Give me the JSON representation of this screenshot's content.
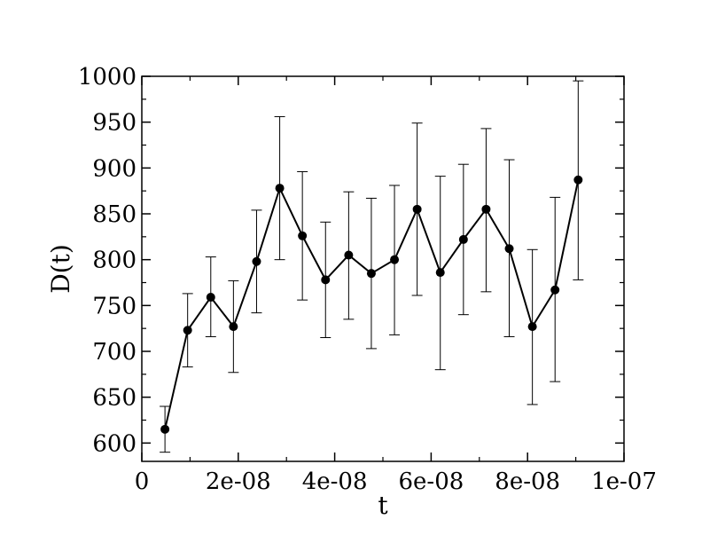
{
  "chart_data": {
    "type": "line",
    "xlabel": "t",
    "ylabel": "D(t)",
    "xlim": [
      0,
      1e-07
    ],
    "ylim": [
      580,
      1000
    ],
    "grid": false,
    "x_ticks": [
      {
        "value": 0,
        "label": "0"
      },
      {
        "value": 2e-08,
        "label": "2e-08"
      },
      {
        "value": 4e-08,
        "label": "4e-08"
      },
      {
        "value": 6e-08,
        "label": "6e-08"
      },
      {
        "value": 8e-08,
        "label": "8e-08"
      },
      {
        "value": 1e-07,
        "label": "1e-07"
      }
    ],
    "y_ticks": [
      {
        "value": 600,
        "label": "600"
      },
      {
        "value": 650,
        "label": "650"
      },
      {
        "value": 700,
        "label": "700"
      },
      {
        "value": 750,
        "label": "750"
      },
      {
        "value": 800,
        "label": "800"
      },
      {
        "value": 850,
        "label": "850"
      },
      {
        "value": 900,
        "label": "900"
      },
      {
        "value": 950,
        "label": "950"
      },
      {
        "value": 1000,
        "label": "1000"
      }
    ],
    "series": [
      {
        "x": [
          4.8e-09,
          9.5e-09,
          1.43e-08,
          1.9e-08,
          2.38e-08,
          2.86e-08,
          3.33e-08,
          3.81e-08,
          4.29e-08,
          4.76e-08,
          5.24e-08,
          5.71e-08,
          6.19e-08,
          6.67e-08,
          7.14e-08,
          7.62e-08,
          8.1e-08,
          8.57e-08,
          9.05e-08
        ],
        "y": [
          615,
          723,
          759,
          727,
          798,
          878,
          826,
          778,
          805,
          785,
          800,
          855,
          786,
          822,
          855,
          812,
          727,
          767,
          887
        ],
        "y_err_low": [
          590,
          683,
          716,
          677,
          742,
          800,
          756,
          715,
          735,
          703,
          718,
          761,
          680,
          740,
          765,
          716,
          642,
          667,
          778
        ],
        "y_err_high": [
          640,
          763,
          803,
          777,
          854,
          956,
          896,
          841,
          874,
          867,
          881,
          949,
          891,
          904,
          943,
          909,
          811,
          868,
          995
        ]
      }
    ]
  }
}
